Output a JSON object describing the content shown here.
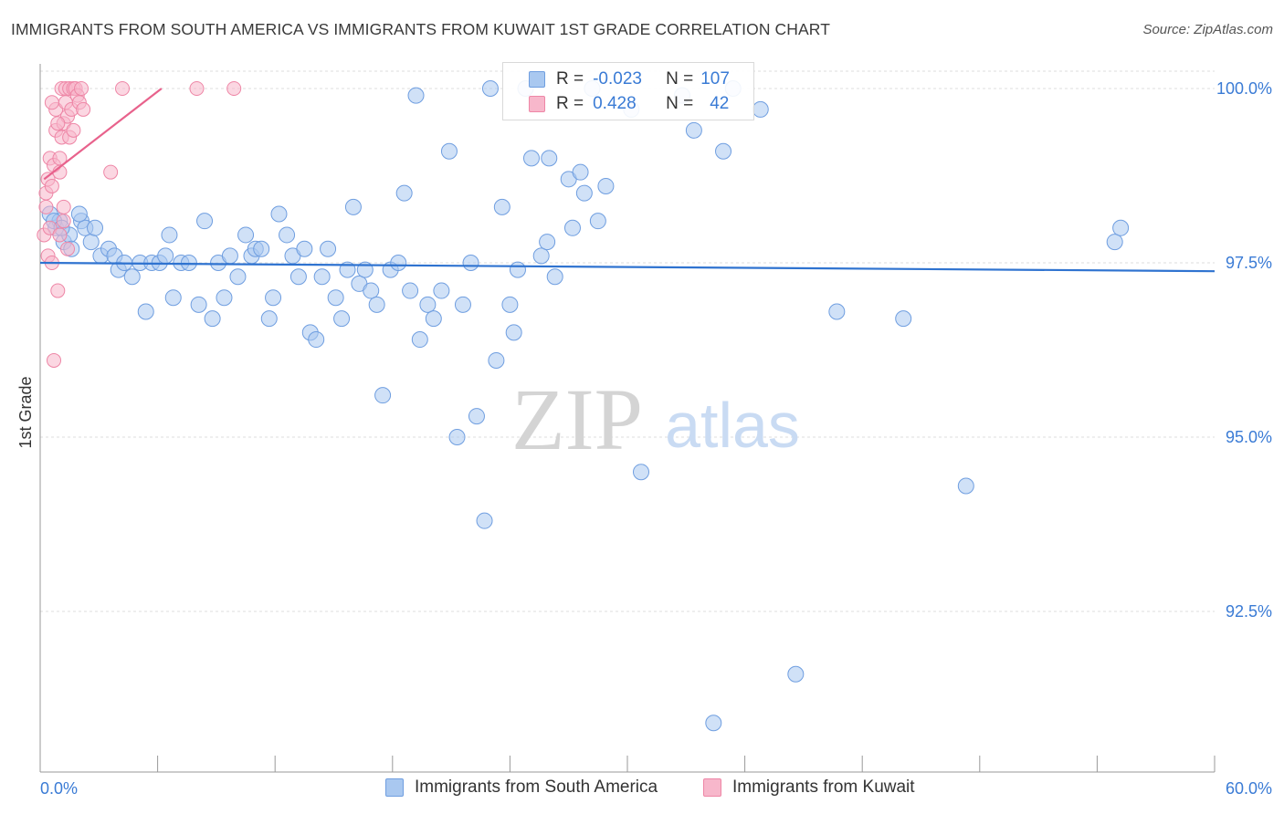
{
  "title": "IMMIGRANTS FROM SOUTH AMERICA VS IMMIGRANTS FROM KUWAIT 1ST GRADE CORRELATION CHART",
  "source": "Source: ZipAtlas.com",
  "watermark": {
    "zip": "ZIP",
    "atlas": "atlas"
  },
  "legend": {
    "rows": [
      {
        "r_label": "R =",
        "r_value": "-0.023",
        "n_label": "N =",
        "n_value": "107"
      },
      {
        "r_label": "R =",
        "r_value": "0.428",
        "n_label": "N =",
        "n_value": "42"
      }
    ]
  },
  "bottom_legend": [
    "Immigrants from South America",
    "Immigrants from Kuwait"
  ],
  "colors": {
    "blue_fill": "#a9c8f0",
    "blue_stroke": "#6f9ee0",
    "blue_line": "#2f73d0",
    "pink_fill": "#f7b7cb",
    "pink_stroke": "#ee86a6",
    "pink_line": "#e8628c",
    "tick_text": "#3a7bd5",
    "grid": "#dcdcdc"
  },
  "chart_data": {
    "type": "scatter",
    "title": "IMMIGRANTS FROM SOUTH AMERICA VS IMMIGRANTS FROM KUWAIT 1ST GRADE CORRELATION CHART",
    "xlabel": "",
    "ylabel": "1st Grade",
    "xlim": [
      0,
      60
    ],
    "ylim": [
      90.2,
      100.2
    ],
    "x_tick_labels": [
      "0.0%",
      "60.0%"
    ],
    "y_ticks": [
      100.0,
      97.5,
      95.0,
      92.5
    ],
    "y_tick_labels": [
      "100.0%",
      "97.5%",
      "95.0%",
      "92.5%"
    ],
    "grid": "horizontal dashed",
    "legend_placement": "top-center",
    "series": [
      {
        "name": "Immigrants from South America",
        "color": "#a9c8f0",
        "trend": {
          "x": [
            0,
            60
          ],
          "y": [
            97.5,
            97.38
          ]
        },
        "points": [
          [
            0.5,
            98.2
          ],
          [
            0.8,
            98.0
          ],
          [
            1.0,
            98.1
          ],
          [
            1.2,
            97.8
          ],
          [
            1.5,
            97.9
          ],
          [
            2.1,
            98.1
          ],
          [
            2.3,
            98.0
          ],
          [
            2.6,
            97.8
          ],
          [
            2.8,
            98.0
          ],
          [
            3.1,
            97.6
          ],
          [
            3.5,
            97.7
          ],
          [
            3.8,
            97.6
          ],
          [
            4.0,
            97.4
          ],
          [
            4.3,
            97.5
          ],
          [
            4.7,
            97.3
          ],
          [
            5.1,
            97.5
          ],
          [
            5.4,
            96.8
          ],
          [
            5.7,
            97.5
          ],
          [
            6.1,
            97.5
          ],
          [
            6.4,
            97.6
          ],
          [
            6.6,
            97.9
          ],
          [
            6.8,
            97.0
          ],
          [
            7.2,
            97.5
          ],
          [
            7.6,
            97.5
          ],
          [
            8.1,
            96.9
          ],
          [
            8.4,
            98.1
          ],
          [
            8.8,
            96.7
          ],
          [
            9.1,
            97.5
          ],
          [
            9.4,
            97.0
          ],
          [
            9.7,
            97.6
          ],
          [
            10.1,
            97.3
          ],
          [
            10.5,
            97.9
          ],
          [
            10.8,
            97.6
          ],
          [
            11.0,
            97.7
          ],
          [
            11.3,
            97.7
          ],
          [
            11.7,
            96.7
          ],
          [
            11.9,
            97.0
          ],
          [
            12.2,
            98.2
          ],
          [
            12.6,
            97.9
          ],
          [
            12.9,
            97.6
          ],
          [
            13.2,
            97.3
          ],
          [
            13.5,
            97.7
          ],
          [
            13.8,
            96.5
          ],
          [
            14.1,
            96.4
          ],
          [
            14.4,
            97.3
          ],
          [
            14.7,
            97.7
          ],
          [
            15.1,
            97.0
          ],
          [
            15.4,
            96.7
          ],
          [
            15.7,
            97.4
          ],
          [
            16.0,
            98.3
          ],
          [
            16.3,
            97.2
          ],
          [
            16.6,
            97.4
          ],
          [
            16.9,
            97.1
          ],
          [
            17.2,
            96.9
          ],
          [
            17.5,
            95.6
          ],
          [
            17.9,
            97.4
          ],
          [
            18.3,
            97.5
          ],
          [
            18.6,
            98.5
          ],
          [
            18.9,
            97.1
          ],
          [
            19.2,
            99.9
          ],
          [
            19.4,
            96.4
          ],
          [
            19.8,
            96.9
          ],
          [
            20.1,
            96.7
          ],
          [
            20.5,
            97.1
          ],
          [
            20.9,
            99.1
          ],
          [
            21.3,
            95.0
          ],
          [
            21.6,
            96.9
          ],
          [
            22.0,
            97.5
          ],
          [
            22.3,
            95.3
          ],
          [
            22.7,
            93.8
          ],
          [
            23.0,
            100.0
          ],
          [
            23.3,
            96.1
          ],
          [
            23.6,
            98.3
          ],
          [
            24.0,
            96.9
          ],
          [
            24.2,
            96.5
          ],
          [
            24.4,
            97.4
          ],
          [
            24.8,
            100.0
          ],
          [
            25.1,
            99.0
          ],
          [
            25.6,
            97.6
          ],
          [
            25.9,
            97.8
          ],
          [
            26.0,
            99.0
          ],
          [
            26.3,
            97.3
          ],
          [
            27.0,
            98.7
          ],
          [
            27.2,
            98.0
          ],
          [
            27.6,
            98.8
          ],
          [
            27.8,
            98.5
          ],
          [
            28.2,
            100.0
          ],
          [
            28.5,
            98.1
          ],
          [
            28.9,
            98.6
          ],
          [
            30.2,
            99.7
          ],
          [
            30.7,
            94.5
          ],
          [
            32.8,
            99.9
          ],
          [
            33.4,
            99.4
          ],
          [
            34.4,
            90.9
          ],
          [
            34.9,
            99.1
          ],
          [
            35.4,
            100.0
          ],
          [
            36.8,
            99.7
          ],
          [
            38.6,
            91.6
          ],
          [
            40.7,
            96.8
          ],
          [
            44.1,
            96.7
          ],
          [
            47.3,
            94.3
          ],
          [
            54.9,
            97.8
          ],
          [
            55.2,
            98.0
          ],
          [
            0.7,
            98.1
          ],
          [
            1.1,
            98.0
          ],
          [
            2.0,
            98.2
          ],
          [
            1.6,
            97.7
          ]
        ]
      },
      {
        "name": "Immigrants from Kuwait",
        "color": "#f7b7cb",
        "trend": {
          "x": [
            0.2,
            6.2
          ],
          "y": [
            98.7,
            100.0
          ]
        },
        "points": [
          [
            0.2,
            97.9
          ],
          [
            0.3,
            98.3
          ],
          [
            0.3,
            98.5
          ],
          [
            0.4,
            98.7
          ],
          [
            0.4,
            97.6
          ],
          [
            0.5,
            99.0
          ],
          [
            0.5,
            98.0
          ],
          [
            0.6,
            97.5
          ],
          [
            0.6,
            98.6
          ],
          [
            0.7,
            98.9
          ],
          [
            0.8,
            99.4
          ],
          [
            0.8,
            99.7
          ],
          [
            0.9,
            97.1
          ],
          [
            1.0,
            98.8
          ],
          [
            1.0,
            97.9
          ],
          [
            1.1,
            100.0
          ],
          [
            1.1,
            99.3
          ],
          [
            1.2,
            99.5
          ],
          [
            1.2,
            98.3
          ],
          [
            1.3,
            99.8
          ],
          [
            1.3,
            100.0
          ],
          [
            1.4,
            97.7
          ],
          [
            1.4,
            99.6
          ],
          [
            1.5,
            100.0
          ],
          [
            1.5,
            99.3
          ],
          [
            1.6,
            99.7
          ],
          [
            1.7,
            100.0
          ],
          [
            1.7,
            99.4
          ],
          [
            1.8,
            100.0
          ],
          [
            1.9,
            99.9
          ],
          [
            2.0,
            99.8
          ],
          [
            2.1,
            100.0
          ],
          [
            2.2,
            99.7
          ],
          [
            3.6,
            98.8
          ],
          [
            4.2,
            100.0
          ],
          [
            8.0,
            100.0
          ],
          [
            9.9,
            100.0
          ],
          [
            0.6,
            99.8
          ],
          [
            0.9,
            99.5
          ],
          [
            1.2,
            98.1
          ],
          [
            0.7,
            96.1
          ],
          [
            1.0,
            99.0
          ]
        ]
      }
    ]
  }
}
